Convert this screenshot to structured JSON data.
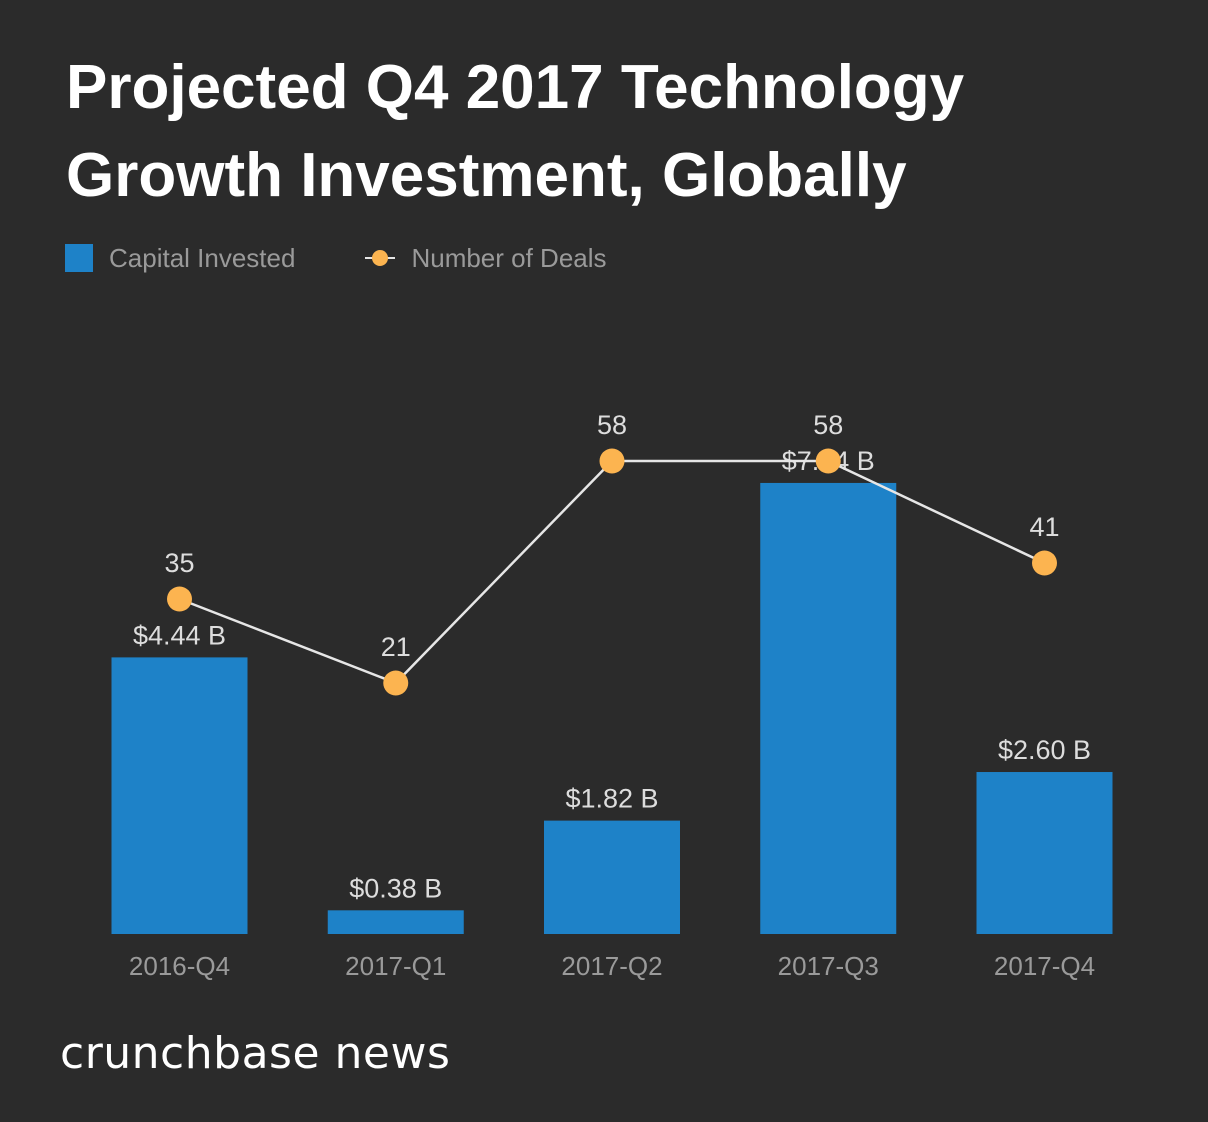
{
  "colors": {
    "background": "#2b2b2b",
    "bar": "#1e82c8",
    "marker": "#fcb450",
    "line": "#e6e6e6",
    "label": "#dddddd",
    "tick": "#9a9a9a"
  },
  "chart_data": {
    "type": "bar",
    "title": "Projected Q4 2017 Technology Growth Investment, Globally",
    "categories": [
      "2016-Q4",
      "2017-Q1",
      "2017-Q2",
      "2017-Q3",
      "2017-Q4"
    ],
    "series": [
      {
        "name": "Capital Invested",
        "type": "bar",
        "unit": "B USD",
        "values": [
          4.44,
          0.38,
          1.82,
          7.24,
          2.6
        ],
        "labels": [
          "$4.44 B",
          "$0.38 B",
          "$1.82 B",
          "$7.24 B",
          "$2.60 B"
        ]
      },
      {
        "name": "Number of Deals",
        "type": "line",
        "values": [
          35,
          21,
          58,
          58,
          41
        ],
        "labels": [
          "35",
          "21",
          "58",
          "58",
          "41"
        ]
      }
    ],
    "grid": false,
    "legend": "top-left"
  },
  "brand": {
    "text": "crunchbase news"
  }
}
